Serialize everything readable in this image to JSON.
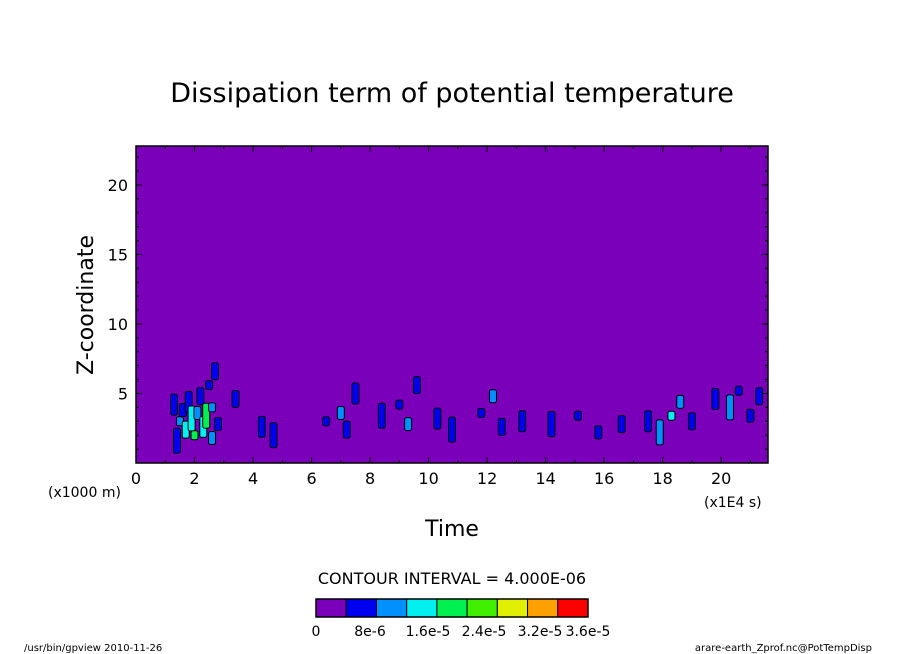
{
  "chart_data": {
    "type": "heatmap",
    "title": "Dissipation term of potential temperature",
    "xlabel": "Time",
    "ylabel": "Z-coordinate",
    "x_unit_note": "(x1E4 s)",
    "y_unit_note": "(x1000 m)",
    "xlim": [
      0,
      21.6
    ],
    "ylim": [
      0,
      22.8
    ],
    "x_ticks": [
      0,
      2,
      4,
      6,
      8,
      10,
      12,
      14,
      16,
      18,
      20
    ],
    "y_ticks": [
      5,
      10,
      15,
      20
    ],
    "contour_interval_text": "CONTOUR INTERVAL = 4.000E-06",
    "colorbar_labels": [
      "0",
      "8e-6",
      "1.6e-5",
      "2.4e-5",
      "3.2e-5",
      "3.6e-5"
    ],
    "colorbar_colors": [
      "#7a00ba",
      "#0000f0",
      "#0090ff",
      "#00f0f0",
      "#00f050",
      "#40f000",
      "#e0f000",
      "#ffa000",
      "#ff0000"
    ],
    "background_color": "#7a00ba",
    "cells": [
      {
        "x": 1.5,
        "z": 3.0,
        "level": 2
      },
      {
        "x": 1.6,
        "z": 3.8,
        "level": 1
      },
      {
        "x": 1.7,
        "z": 2.4,
        "level": 3
      },
      {
        "x": 1.8,
        "z": 4.4,
        "level": 1
      },
      {
        "x": 1.9,
        "z": 3.2,
        "level": 3
      },
      {
        "x": 2.0,
        "z": 2.0,
        "level": 4
      },
      {
        "x": 2.1,
        "z": 3.6,
        "level": 2
      },
      {
        "x": 2.2,
        "z": 4.8,
        "level": 1
      },
      {
        "x": 2.3,
        "z": 2.6,
        "level": 3
      },
      {
        "x": 2.4,
        "z": 3.4,
        "level": 4
      },
      {
        "x": 2.5,
        "z": 5.6,
        "level": 1
      },
      {
        "x": 2.6,
        "z": 1.8,
        "level": 2
      },
      {
        "x": 2.7,
        "z": 6.6,
        "level": 1
      },
      {
        "x": 1.3,
        "z": 4.2,
        "level": 1
      },
      {
        "x": 1.4,
        "z": 1.6,
        "level": 1
      },
      {
        "x": 2.6,
        "z": 4.0,
        "level": 2
      },
      {
        "x": 2.8,
        "z": 2.8,
        "level": 1
      },
      {
        "x": 3.4,
        "z": 4.6,
        "level": 1
      },
      {
        "x": 4.3,
        "z": 2.6,
        "level": 1
      },
      {
        "x": 4.7,
        "z": 2.0,
        "level": 1
      },
      {
        "x": 6.5,
        "z": 3.0,
        "level": 1
      },
      {
        "x": 7.0,
        "z": 3.6,
        "level": 2
      },
      {
        "x": 7.2,
        "z": 2.4,
        "level": 1
      },
      {
        "x": 7.5,
        "z": 5.0,
        "level": 1
      },
      {
        "x": 8.4,
        "z": 3.4,
        "level": 1
      },
      {
        "x": 9.0,
        "z": 4.2,
        "level": 1
      },
      {
        "x": 9.3,
        "z": 2.8,
        "level": 2
      },
      {
        "x": 9.6,
        "z": 5.6,
        "level": 1
      },
      {
        "x": 10.3,
        "z": 3.2,
        "level": 1
      },
      {
        "x": 10.8,
        "z": 2.4,
        "level": 1
      },
      {
        "x": 11.8,
        "z": 3.6,
        "level": 1
      },
      {
        "x": 12.2,
        "z": 4.8,
        "level": 2
      },
      {
        "x": 12.5,
        "z": 2.6,
        "level": 1
      },
      {
        "x": 13.2,
        "z": 3.0,
        "level": 1
      },
      {
        "x": 14.2,
        "z": 2.8,
        "level": 1
      },
      {
        "x": 15.1,
        "z": 3.4,
        "level": 1
      },
      {
        "x": 15.8,
        "z": 2.2,
        "level": 1
      },
      {
        "x": 16.6,
        "z": 2.8,
        "level": 1
      },
      {
        "x": 17.5,
        "z": 3.0,
        "level": 1
      },
      {
        "x": 17.9,
        "z": 2.2,
        "level": 2
      },
      {
        "x": 18.3,
        "z": 3.4,
        "level": 3
      },
      {
        "x": 18.6,
        "z": 4.4,
        "level": 2
      },
      {
        "x": 19.0,
        "z": 3.0,
        "level": 1
      },
      {
        "x": 19.8,
        "z": 4.6,
        "level": 1
      },
      {
        "x": 20.3,
        "z": 4.0,
        "level": 2
      },
      {
        "x": 20.6,
        "z": 5.2,
        "level": 1
      },
      {
        "x": 21.0,
        "z": 3.4,
        "level": 1
      },
      {
        "x": 21.3,
        "z": 4.8,
        "level": 1
      }
    ]
  },
  "footer": {
    "left": "/usr/bin/gpview  2010-11-26",
    "right": "arare-earth_Zprof.nc@PotTempDisp"
  }
}
